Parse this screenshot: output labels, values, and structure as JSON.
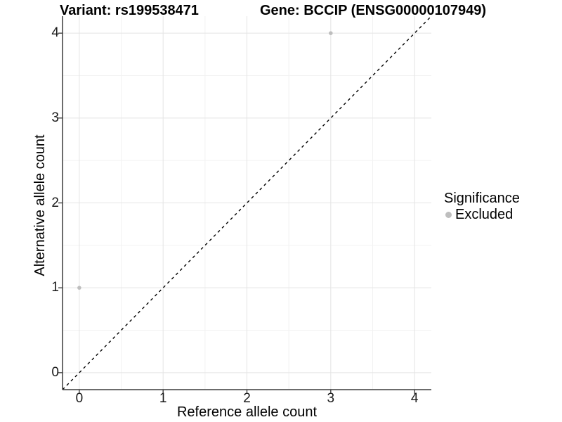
{
  "titles": {
    "variant": "Variant: rs199538471",
    "gene": "Gene: BCCIP (ENSG00000107949)"
  },
  "chart_data": {
    "type": "scatter",
    "xlabel": "Reference allele count",
    "ylabel": "Alternative allele count",
    "xlim": [
      -0.2,
      4.2
    ],
    "ylim": [
      -0.2,
      4.2
    ],
    "x_ticks": [
      0,
      1,
      2,
      3,
      4
    ],
    "y_ticks": [
      0,
      1,
      2,
      3,
      4
    ],
    "grid": {
      "major": true,
      "minor": true
    },
    "identity_line": {
      "style": "dashed",
      "color": "#000000",
      "from": [
        -0.2,
        -0.2
      ],
      "to": [
        4.2,
        4.2
      ]
    },
    "series": [
      {
        "name": "Excluded",
        "color": "#bebebe",
        "point_radius": 2.8,
        "points": [
          [
            0,
            1
          ],
          [
            3,
            4
          ]
        ]
      }
    ],
    "legend": {
      "position": "right",
      "title": "Significance",
      "entries": [
        {
          "label": "Excluded",
          "color": "#bebebe"
        }
      ]
    },
    "colors": {
      "grid_major": "#e4e4e4",
      "grid_minor": "#f2f2f2",
      "axis_line": "#3c3c3c",
      "tick_mark": "#333333",
      "background": "#ffffff"
    }
  }
}
